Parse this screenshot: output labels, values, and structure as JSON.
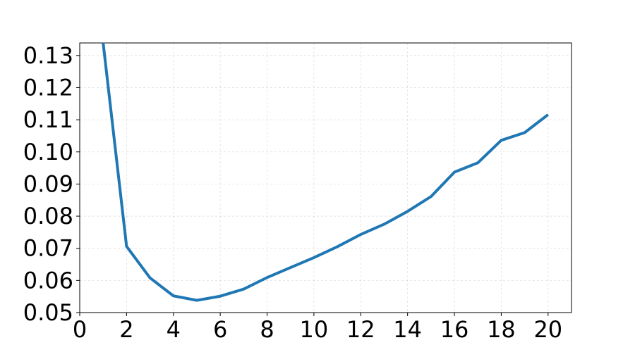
{
  "chart_data": {
    "type": "line",
    "title": "",
    "xlabel": "",
    "ylabel": "",
    "xlim": [
      0,
      21
    ],
    "ylim": [
      0.05,
      0.1339
    ],
    "xticks": [
      0,
      2,
      4,
      6,
      8,
      10,
      12,
      14,
      16,
      18,
      20
    ],
    "yticks": [
      0.05,
      0.06,
      0.07,
      0.08,
      0.09,
      0.1,
      0.11,
      0.12,
      0.13
    ],
    "grid": true,
    "legend": "none",
    "series": [
      {
        "color": "#1f77b4",
        "x": [
          1,
          2,
          3,
          4,
          5,
          6,
          7,
          8,
          9,
          10,
          11,
          12,
          13,
          14,
          15,
          16,
          17,
          18,
          19,
          20
        ],
        "values": [
          0.1339,
          0.0706,
          0.0608,
          0.0552,
          0.0538,
          0.0551,
          0.0573,
          0.0609,
          0.064,
          0.0671,
          0.0705,
          0.0743,
          0.0775,
          0.0815,
          0.0861,
          0.0937,
          0.0966,
          0.1036,
          0.106,
          0.1116
        ]
      }
    ]
  }
}
